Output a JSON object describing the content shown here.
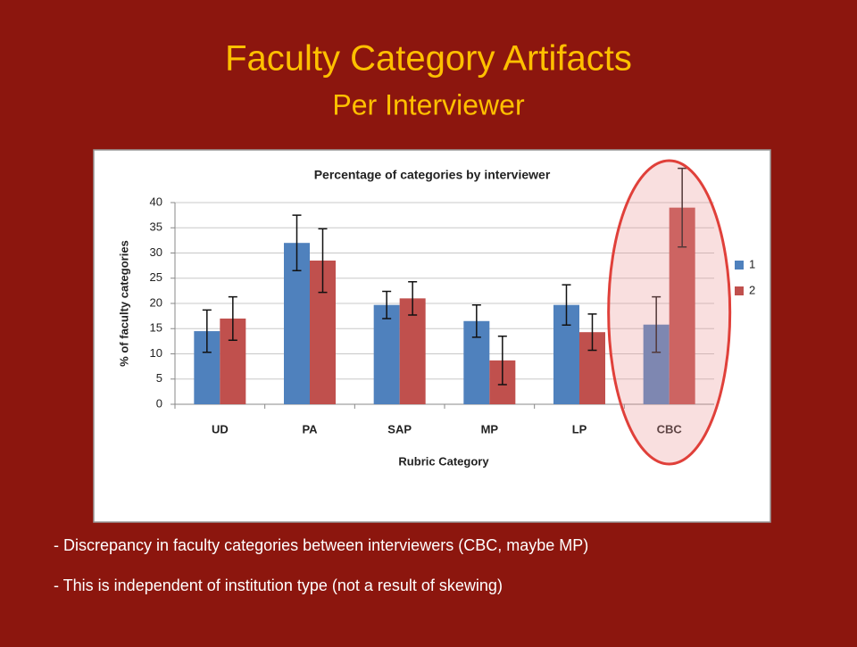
{
  "slide": {
    "title": "Faculty Category Artifacts",
    "subtitle": "Per Interviewer",
    "bullets": [
      "- Discrepancy in faculty categories between interviewers (CBC, maybe MP)",
      "- This is independent of institution type (not a result of skewing)"
    ]
  },
  "chart_data": {
    "type": "bar",
    "title": "Percentage of categories by interviewer",
    "x_label": "Rubric Category",
    "y_label": "% of faculty categories",
    "categories": [
      "UD",
      "PA",
      "SAP",
      "MP",
      "LP",
      "CBC"
    ],
    "series": [
      {
        "name": "1",
        "color": "#4f81bd",
        "values": [
          14.5,
          32,
          19.7,
          16.5,
          19.7,
          15.8
        ],
        "errors": [
          4.2,
          5.5,
          2.7,
          3.2,
          4.0,
          5.5
        ]
      },
      {
        "name": "2",
        "color": "#c0504d",
        "values": [
          17,
          28.5,
          21,
          8.7,
          14.3,
          39
        ],
        "errors": [
          4.3,
          6.3,
          3.3,
          4.8,
          3.6,
          7.8
        ]
      }
    ],
    "ylim": [
      0,
      40
    ],
    "yticks": [
      0,
      5,
      10,
      15,
      20,
      25,
      30,
      35,
      40
    ],
    "grid": true,
    "legend": "right"
  }
}
